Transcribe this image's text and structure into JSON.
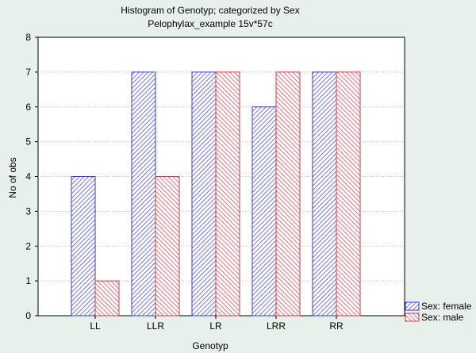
{
  "chart_data": {
    "type": "bar",
    "title": "Histogram of Genotyp; categorized by Sex",
    "subtitle": "Pelophylax_example 15v*57c",
    "xlabel": "Genotyp",
    "ylabel": "No of obs",
    "categories": [
      "LL",
      "LLR",
      "LR",
      "LRR",
      "RR"
    ],
    "series": [
      {
        "name": "Sex: female",
        "values": [
          4,
          7,
          7,
          6,
          7
        ],
        "color": "#3c3cd0"
      },
      {
        "name": "Sex: male",
        "values": [
          1,
          4,
          7,
          7,
          7
        ],
        "color": "#d03c4a"
      }
    ],
    "ylim": [
      0,
      8
    ],
    "yticks": [
      "0",
      "1",
      "2",
      "3",
      "4",
      "5",
      "6",
      "7",
      "8"
    ],
    "grid": true,
    "legend_position": "bottom-right"
  }
}
